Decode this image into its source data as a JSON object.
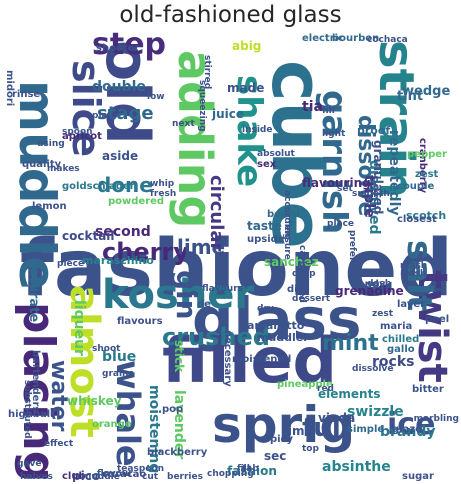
{
  "title": "old-fashioned glass",
  "words": [
    {
      "text": "fashioned",
      "color": "#3b528b"
    },
    {
      "text": "old",
      "color": "#3e4a89"
    },
    {
      "text": "cube",
      "color": "#2c728e"
    },
    {
      "text": "glass",
      "color": "#3b528b"
    },
    {
      "text": "filled",
      "color": "#3e4989"
    },
    {
      "text": "strain",
      "color": "#25838e"
    },
    {
      "text": "muddle",
      "color": "#31688e"
    },
    {
      "text": "adding",
      "color": "#5ec962"
    },
    {
      "text": "sprig",
      "color": "#3b528b"
    },
    {
      "text": "placing",
      "color": "#482878"
    },
    {
      "text": "almost",
      "color": "#bddf26"
    },
    {
      "text": "slice",
      "color": "#3e4a89"
    },
    {
      "text": "kosher",
      "color": "#2a788e"
    },
    {
      "text": "twist",
      "color": "#443a83"
    },
    {
      "text": "garnish",
      "color": "#31688e"
    },
    {
      "text": "shake",
      "color": "#21918c"
    },
    {
      "text": "salt",
      "color": "#31688e"
    },
    {
      "text": "whale",
      "color": "#3b528b"
    },
    {
      "text": "ice",
      "color": "#3b528b"
    },
    {
      "text": "step",
      "color": "#472d7b"
    },
    {
      "text": "gin",
      "color": "#3b528b"
    },
    {
      "text": "cherry",
      "color": "#482878"
    },
    {
      "text": "water",
      "color": "#3b528b"
    },
    {
      "text": "crushed",
      "color": "#2a788e"
    },
    {
      "text": "mint",
      "color": "#2c728e"
    },
    {
      "text": "dissolve",
      "color": "#31688e"
    },
    {
      "text": "full",
      "color": "#3b528b"
    },
    {
      "text": "done",
      "color": "#2a788e"
    },
    {
      "text": "lime",
      "color": "#3b528b"
    },
    {
      "text": "circular",
      "color": "#443983"
    },
    {
      "text": "stage",
      "color": "#31688e"
    },
    {
      "text": "absinthe",
      "color": "#25848e"
    },
    {
      "text": "brandy",
      "color": "#2a788e"
    },
    {
      "text": "grenadine",
      "color": "#482878"
    },
    {
      "text": "repeatedly",
      "color": "#31688e"
    },
    {
      "text": "dissolved",
      "color": "#2a788e"
    },
    {
      "text": "triple",
      "color": "#443983"
    },
    {
      "text": "granulated",
      "color": "#3b528b"
    },
    {
      "text": "swizzle",
      "color": "#26828e"
    },
    {
      "text": "elements",
      "color": "#26828e"
    },
    {
      "text": "rocks",
      "color": "#3e4989"
    },
    {
      "text": "moistening",
      "color": "#2a788e"
    },
    {
      "text": "lavender",
      "color": "#5ec962"
    },
    {
      "text": "blue",
      "color": "#2a788e"
    },
    {
      "text": "aside",
      "color": "#3b528b"
    },
    {
      "text": "second",
      "color": "#482878"
    },
    {
      "text": "double",
      "color": "#31688e"
    },
    {
      "text": "sanchez",
      "color": "#5ec962"
    },
    {
      "text": "fashion",
      "color": "#2a788e"
    },
    {
      "text": "viuda",
      "color": "#3b528b"
    },
    {
      "text": "sec",
      "color": "#3b528b"
    },
    {
      "text": "rim",
      "color": "#3b528b"
    },
    {
      "text": "stick",
      "color": "#5ec962"
    },
    {
      "text": "flavouring",
      "color": "#472d7b"
    },
    {
      "text": "cocktail",
      "color": "#3e4989"
    },
    {
      "text": "saturate",
      "color": "#31688e"
    },
    {
      "text": "scotch",
      "color": "#2a788e"
    },
    {
      "text": "liqueur",
      "color": "#5ec962"
    },
    {
      "text": "tint",
      "color": "#31688e"
    },
    {
      "text": "wedge",
      "color": "#31688e"
    },
    {
      "text": "made",
      "color": "#3b528b"
    },
    {
      "text": "juice",
      "color": "#31688e"
    },
    {
      "text": "taste",
      "color": "#31688e"
    },
    {
      "text": "tia",
      "color": "#482878"
    },
    {
      "text": "abig",
      "color": "#bddf26"
    },
    {
      "text": "proof",
      "color": "#31688e"
    },
    {
      "text": "amaretto",
      "color": "#3b528b"
    },
    {
      "text": "muddler",
      "color": "#3b528b"
    },
    {
      "text": "maraschino",
      "color": "#26828e"
    },
    {
      "text": "blackberry",
      "color": "#3b528b"
    },
    {
      "text": "whiskey",
      "color": "#5ec962"
    },
    {
      "text": "pineapple",
      "color": "#5ec962"
    },
    {
      "text": "chilled",
      "color": "#2a788e"
    },
    {
      "text": "gallo",
      "color": "#31688e"
    },
    {
      "text": "pico",
      "color": "#3b528b"
    },
    {
      "text": "highball",
      "color": "#3b528b"
    },
    {
      "text": "club",
      "color": "#472d7b"
    },
    {
      "text": "curacao",
      "color": "#3e4989"
    },
    {
      "text": "orange",
      "color": "#5ec962"
    },
    {
      "text": "spicy",
      "color": "#3b528b"
    },
    {
      "text": "simple",
      "color": "#31688e"
    },
    {
      "text": "bitter",
      "color": "#3b528b"
    },
    {
      "text": "glaze",
      "color": "#3b528b"
    },
    {
      "text": "sugar",
      "color": "#3b528b"
    },
    {
      "text": "shooter",
      "color": "#3b528b"
    },
    {
      "text": "electric",
      "color": "#31688e"
    },
    {
      "text": "bourbon",
      "color": "#31688e"
    },
    {
      "text": "cranberry",
      "color": "#482878"
    },
    {
      "text": "couple",
      "color": "#31688e"
    },
    {
      "text": "zest",
      "color": "#2a788e"
    },
    {
      "text": "pepper",
      "color": "#5ec962"
    },
    {
      "text": "peel",
      "color": "#3b528b"
    },
    {
      "text": "layer",
      "color": "#3b528b"
    },
    {
      "text": "maria",
      "color": "#3b528b"
    },
    {
      "text": "candy",
      "color": "#3b528b"
    },
    {
      "text": "powdered",
      "color": "#5ec962"
    },
    {
      "text": "apricot",
      "color": "#482878"
    },
    {
      "text": "flavours",
      "color": "#3b528b"
    },
    {
      "text": "lemon",
      "color": "#3b528b"
    },
    {
      "text": "goldschlager",
      "color": "#2a788e"
    },
    {
      "text": "quality",
      "color": "#3b528b"
    },
    {
      "text": "bartenders",
      "color": "#3b528b"
    },
    {
      "text": "midori",
      "color": "#3b528b"
    },
    {
      "text": "rinse",
      "color": "#3b528b"
    },
    {
      "text": "dash",
      "color": "#3b528b"
    },
    {
      "text": "mash",
      "color": "#3b528b"
    },
    {
      "text": "board",
      "color": "#31688e"
    },
    {
      "text": "closest",
      "color": "#3b528b"
    },
    {
      "text": "upside",
      "color": "#3b528b"
    },
    {
      "text": "necessary",
      "color": "#3b528b"
    },
    {
      "text": "moistened",
      "color": "#3b528b"
    },
    {
      "text": "sex",
      "color": "#482878"
    },
    {
      "text": "absolut",
      "color": "#3b528b"
    },
    {
      "text": "dessert",
      "color": "#3b528b"
    },
    {
      "text": "dip",
      "color": "#3b528b"
    },
    {
      "text": "drop",
      "color": "#3b528b"
    },
    {
      "text": "set",
      "color": "#3b528b"
    },
    {
      "text": "smooth",
      "color": "#3b528b"
    },
    {
      "text": "according",
      "color": "#3b528b"
    },
    {
      "text": "fill",
      "color": "#3b528b"
    },
    {
      "text": "light",
      "color": "#3b528b"
    },
    {
      "text": "next",
      "color": "#3b528b"
    },
    {
      "text": "plain",
      "color": "#3b528b"
    },
    {
      "text": "spoon",
      "color": "#3b528b"
    },
    {
      "text": "using",
      "color": "#3b528b"
    },
    {
      "text": "makes",
      "color": "#3b528b"
    },
    {
      "text": "whip",
      "color": "#3b528b"
    },
    {
      "text": "fresh",
      "color": "#3b528b"
    },
    {
      "text": "pop",
      "color": "#3b528b"
    },
    {
      "text": "dissolve",
      "color": "#3b528b"
    },
    {
      "text": "grains",
      "color": "#3b528b"
    },
    {
      "text": "shoot",
      "color": "#3b528b"
    },
    {
      "text": "effect",
      "color": "#3b528b"
    },
    {
      "text": "chopping",
      "color": "#3b528b"
    },
    {
      "text": "teaspoon",
      "color": "#3b528b"
    },
    {
      "text": "substituted",
      "color": "#3b528b"
    },
    {
      "text": "flavour",
      "color": "#3b528b"
    },
    {
      "text": "preferred",
      "color": "#3b528b"
    },
    {
      "text": "marbling",
      "color": "#3b528b"
    },
    {
      "text": "muddle",
      "color": "#3b528b"
    },
    {
      "text": "red",
      "color": "#3b528b"
    },
    {
      "text": "dry",
      "color": "#3b528b"
    },
    {
      "text": "low",
      "color": "#3b528b"
    },
    {
      "text": "halves",
      "color": "#3b528b"
    },
    {
      "text": "cut",
      "color": "#3b528b"
    },
    {
      "text": "carbonated",
      "color": "#3b528b"
    },
    {
      "text": "stirred",
      "color": "#3b528b"
    },
    {
      "text": "squeezing",
      "color": "#3b528b"
    },
    {
      "text": "piece",
      "color": "#3b528b"
    },
    {
      "text": "de",
      "color": "#3b528b"
    },
    {
      "text": "tab",
      "color": "#3b528b"
    },
    {
      "text": "place",
      "color": "#3b528b"
    },
    {
      "text": "fill",
      "color": "#3b528b"
    },
    {
      "text": "top",
      "color": "#3b528b"
    },
    {
      "text": "gave",
      "color": "#3b528b"
    },
    {
      "text": "ensure",
      "color": "#3b528b"
    },
    {
      "text": "dash",
      "color": "#3b528b"
    },
    {
      "text": "berries",
      "color": "#3b528b"
    },
    {
      "text": "cochaca",
      "color": "#3b528b"
    },
    {
      "text": "zest",
      "color": "#3b528b"
    },
    {
      "text": "flavours",
      "color": "#3b528b"
    },
    {
      "text": "inside",
      "color": "#3b528b"
    }
  ]
}
